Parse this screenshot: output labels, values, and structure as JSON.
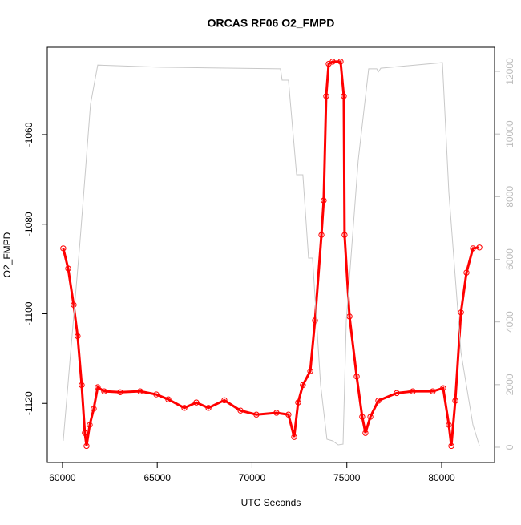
{
  "chart_data": {
    "type": "scatter",
    "title": "ORCAS RF06 O2_FMPD",
    "x_label": "UTC Seconds",
    "y_label": "O2_FMPD",
    "xlim": [
      59200,
      82790
    ],
    "ylim": [
      -1133.2,
      -1040.5
    ],
    "y2lim": [
      -486,
      12768
    ],
    "xticks": [
      60000,
      65000,
      70000,
      75000,
      80000
    ],
    "yticks": [
      -1060,
      -1080,
      -1100,
      -1120
    ],
    "y2ticks": [
      0,
      2000,
      4000,
      6000,
      8000,
      10000,
      12000
    ],
    "series": [
      {
        "name": "O2_FMPD",
        "color": "#ff0000",
        "x": [
          60040,
          60300,
          60590,
          60800,
          61015,
          61180,
          61270,
          61440,
          61650,
          61860,
          62200,
          63045,
          64100,
          64950,
          65580,
          66430,
          67060,
          67700,
          68540,
          69390,
          70230,
          71290,
          71920,
          72220,
          72430,
          72680,
          73070,
          73320,
          73660,
          73780,
          73910,
          74040,
          74250,
          74670,
          74840,
          74880,
          75140,
          75520,
          75810,
          75980,
          76240,
          76660,
          77630,
          78480,
          79530,
          80080,
          80380,
          80510,
          80720,
          81020,
          81310,
          81650,
          81990
        ],
        "values": [
          -1085.4,
          -1089.9,
          -1098,
          -1105,
          -1115.9,
          -1126.6,
          -1129.5,
          -1124.8,
          -1121.2,
          -1116.4,
          -1117.3,
          -1117.5,
          -1117.3,
          -1118,
          -1119.1,
          -1121,
          -1119.8,
          -1121,
          -1119.3,
          -1121.6,
          -1122.5,
          -1122.1,
          -1122.5,
          -1127.5,
          -1119.8,
          -1115.9,
          -1112.8,
          -1101.5,
          -1082.4,
          -1074.7,
          -1051.4,
          -1044.2,
          -1043.7,
          -1043.7,
          -1051.4,
          -1082.4,
          -1100.6,
          -1114,
          -1123,
          -1126.6,
          -1123,
          -1119.4,
          -1117.7,
          -1117.3,
          -1117.3,
          -1116.6,
          -1124.8,
          -1129.5,
          -1119.4,
          -1099.7,
          -1090.8,
          -1085.4,
          -1085.2
        ]
      },
      {
        "axis": "y2",
        "color": "#c8c8c8",
        "x": [
          60040,
          60930,
          61480,
          61860,
          65160,
          71500,
          71585,
          71920,
          72350,
          72680,
          72980,
          73190,
          73615,
          73950,
          74250,
          74545,
          74800,
          74970,
          75600,
          76150,
          76580,
          76660,
          76790,
          80040,
          80380,
          81020,
          81650,
          81990
        ],
        "values": [
          205,
          6600,
          10950,
          12200,
          12130,
          12080,
          11720,
          11720,
          8700,
          8700,
          6040,
          6040,
          2000,
          256,
          205,
          77,
          100,
          4040,
          9160,
          12080,
          12080,
          11980,
          12100,
          12280,
          8140,
          3020,
          716,
          51
        ]
      }
    ]
  }
}
